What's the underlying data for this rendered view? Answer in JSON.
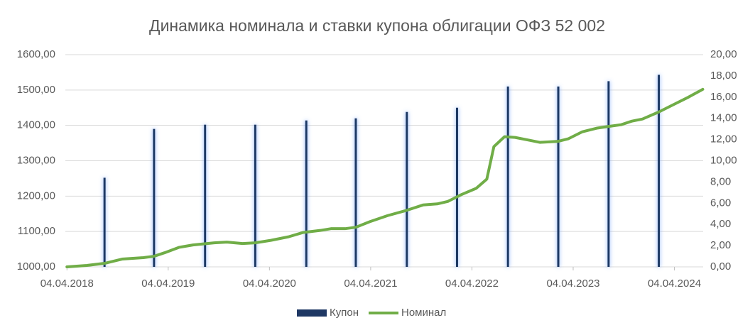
{
  "chart_data": {
    "type": "combo",
    "title": "Динамика номинала и ставки купона облигации ОФЗ 52 002",
    "xlim": [
      2018.24,
      2024.54
    ],
    "xticks": [
      {
        "value": 2018.256,
        "label": "04.04.2018"
      },
      {
        "value": 2019.256,
        "label": "04.04.2019"
      },
      {
        "value": 2020.256,
        "label": "04.04.2020"
      },
      {
        "value": 2021.256,
        "label": "04.04.2021"
      },
      {
        "value": 2022.256,
        "label": "04.04.2022"
      },
      {
        "value": 2023.256,
        "label": "04.04.2023"
      },
      {
        "value": 2024.256,
        "label": "04.04.2024"
      }
    ],
    "ylim": [
      1000,
      1600
    ],
    "yticks": [
      {
        "value": 1000,
        "label": "1000,00"
      },
      {
        "value": 1100,
        "label": "1100,00"
      },
      {
        "value": 1200,
        "label": "1200,00"
      },
      {
        "value": 1300,
        "label": "1300,00"
      },
      {
        "value": 1400,
        "label": "1400,00"
      },
      {
        "value": 1500,
        "label": "1500,00"
      },
      {
        "value": 1600,
        "label": "1600,00"
      }
    ],
    "y2lim": [
      0,
      20
    ],
    "y2ticks": [
      {
        "value": 0,
        "label": "0,00"
      },
      {
        "value": 2,
        "label": "2,00"
      },
      {
        "value": 4,
        "label": "4,00"
      },
      {
        "value": 6,
        "label": "6,00"
      },
      {
        "value": 8,
        "label": "8,00"
      },
      {
        "value": 10,
        "label": "10,00"
      },
      {
        "value": 12,
        "label": "12,00"
      },
      {
        "value": 14,
        "label": "14,00"
      },
      {
        "value": 16,
        "label": "16,00"
      },
      {
        "value": 18,
        "label": "18,00"
      },
      {
        "value": 20,
        "label": "20,00"
      }
    ],
    "grid": true,
    "legend": "bottom",
    "series": [
      {
        "name": "Купон",
        "type": "bar",
        "axis": "y2",
        "color": "#1f3864",
        "x": [
          2018.627,
          2019.116,
          2019.62,
          2020.116,
          2020.62,
          2021.109,
          2021.613,
          2022.109,
          2022.612,
          2023.109,
          2023.606,
          2024.102
        ],
        "values": [
          8.4,
          13.0,
          13.4,
          13.4,
          13.8,
          14.0,
          14.6,
          15.0,
          17.0,
          17.0,
          17.5,
          18.1
        ]
      },
      {
        "name": "Номинал",
        "type": "line",
        "color": "#70ad47",
        "x": [
          2018.256,
          2018.452,
          2018.627,
          2018.801,
          2019.011,
          2019.116,
          2019.221,
          2019.361,
          2019.501,
          2019.711,
          2019.836,
          2019.99,
          2020.116,
          2020.27,
          2020.445,
          2020.585,
          2020.759,
          2020.864,
          2021.004,
          2021.109,
          2021.249,
          2021.424,
          2021.613,
          2021.773,
          2021.913,
          2022.018,
          2022.158,
          2022.298,
          2022.403,
          2022.473,
          2022.578,
          2022.682,
          2022.822,
          2022.927,
          2023.109,
          2023.207,
          2023.347,
          2023.487,
          2023.606,
          2023.731,
          2023.836,
          2023.941,
          2024.102,
          2024.256,
          2024.396,
          2024.536
        ],
        "values": [
          1000,
          1004,
          1010,
          1022,
          1026,
          1030,
          1040,
          1055,
          1062,
          1068,
          1070,
          1066,
          1068,
          1075,
          1085,
          1097,
          1103,
          1108,
          1108,
          1112,
          1128,
          1145,
          1160,
          1175,
          1178,
          1185,
          1205,
          1222,
          1248,
          1340,
          1368,
          1366,
          1358,
          1352,
          1355,
          1362,
          1382,
          1392,
          1397,
          1402,
          1412,
          1418,
          1438,
          1460,
          1480,
          1502
        ]
      }
    ]
  }
}
